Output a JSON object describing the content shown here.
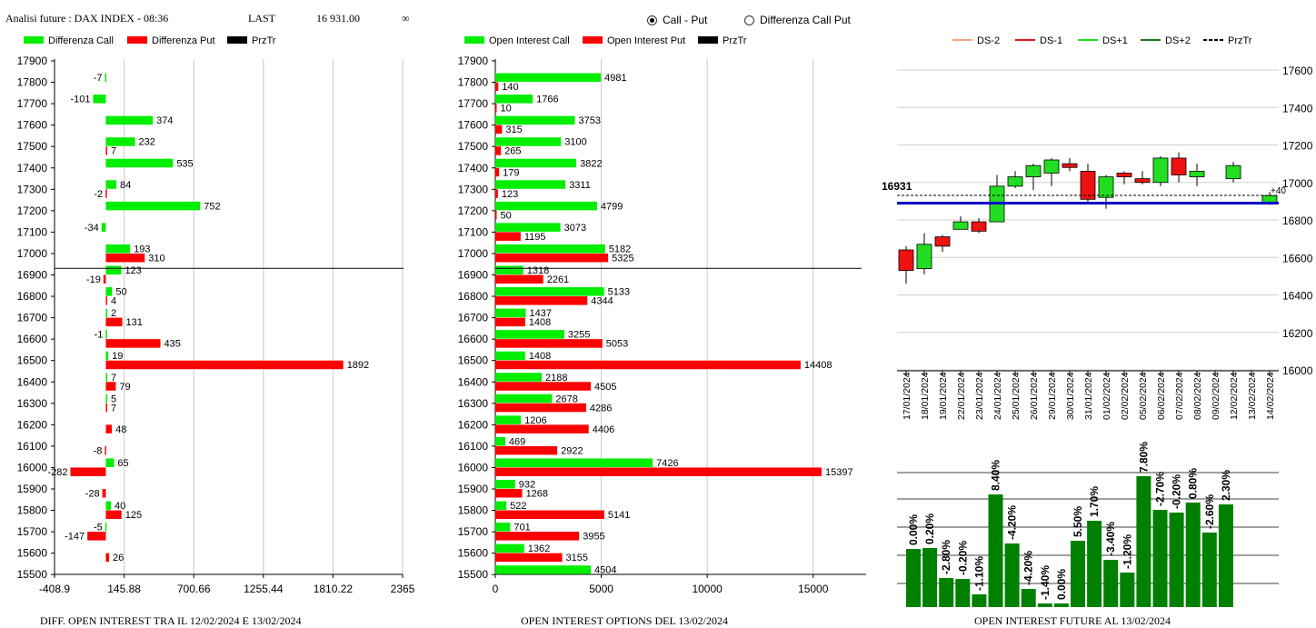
{
  "header": {
    "title": "Analisi future : DAX INDEX - 08:36",
    "last_label": "LAST",
    "last_value": "16 931.00",
    "infinity": "∞"
  },
  "mode": {
    "options": [
      "Call - Put",
      "Differenza Call Put"
    ],
    "selected": "Call - Put"
  },
  "colors": {
    "green": "#00ee00",
    "red": "#ff0000",
    "dark_green": "#008000",
    "blue": "#0000cc",
    "black": "#000000"
  },
  "chart_data": [
    {
      "type": "bar",
      "orientation": "horizontal",
      "title": "DIFF. OPEN INTEREST TRA IL 12/02/2024 E 13/02/2024",
      "legend": [
        "Differenza Call",
        "Differenza Put",
        "PrzTr"
      ],
      "categories": [
        17900,
        17800,
        17700,
        17600,
        17500,
        17400,
        17300,
        17200,
        17100,
        17000,
        16900,
        16800,
        16700,
        16600,
        16500,
        16400,
        16300,
        16200,
        16100,
        16000,
        15900,
        15800,
        15700,
        15600,
        15500
      ],
      "series": [
        {
          "name": "Differenza Call",
          "values": [
            null,
            -7,
            -101,
            374,
            232,
            535,
            84,
            752,
            -34,
            193,
            123,
            50,
            2,
            -1,
            19,
            7,
            5,
            null,
            null,
            65,
            null,
            40,
            -5,
            null,
            null
          ]
        },
        {
          "name": "Differenza Put",
          "values": [
            null,
            null,
            null,
            null,
            7,
            null,
            -2,
            null,
            null,
            310,
            -19,
            4,
            131,
            435,
            1892,
            79,
            7,
            48,
            -8,
            -282,
            -28,
            125,
            -147,
            26,
            null
          ]
        }
      ],
      "x_ticks": [
        "-408.9",
        "145.88",
        "700.66",
        "1255.44",
        "1810.22",
        "2365"
      ],
      "xlim": [
        -408.9,
        2365
      ],
      "price_line": 16931
    },
    {
      "type": "bar",
      "orientation": "horizontal",
      "title": "OPEN INTEREST OPTIONS DEL 13/02/2024",
      "legend": [
        "Open Interest Call",
        "Open Interest Put",
        "PrzTr"
      ],
      "categories": [
        17900,
        17800,
        17700,
        17600,
        17500,
        17400,
        17300,
        17200,
        17100,
        17000,
        16900,
        16800,
        16700,
        16600,
        16500,
        16400,
        16300,
        16200,
        16100,
        16000,
        15900,
        15800,
        15700,
        15600,
        15500
      ],
      "series": [
        {
          "name": "Open Interest Call",
          "values": [
            null,
            4981,
            1766,
            3753,
            3100,
            3822,
            3311,
            4799,
            3073,
            5182,
            1318,
            5133,
            1437,
            3255,
            1408,
            2188,
            2678,
            1206,
            469,
            7426,
            932,
            522,
            701,
            1362,
            4504
          ]
        },
        {
          "name": "Open Interest Put",
          "values": [
            null,
            140,
            10,
            315,
            265,
            179,
            123,
            50,
            1195,
            5325,
            2261,
            4344,
            1408,
            5053,
            14408,
            4505,
            4286,
            4406,
            2922,
            15397,
            1268,
            5141,
            3955,
            3155,
            null
          ]
        }
      ],
      "x_ticks": [
        "0",
        "5000",
        "10000",
        "15000"
      ],
      "xlim": [
        0,
        17500
      ],
      "price_line": 16931
    },
    {
      "type": "candlestick",
      "legend": [
        "DS-2",
        "DS-1",
        "DS+1",
        "DS+2",
        "PrzTr"
      ],
      "legend_colors": [
        "#f4a582",
        "#d7191c",
        "#1ae61a",
        "#1a7a1a",
        "#000000"
      ],
      "dates": [
        "17/01/2024",
        "18/01/2024",
        "19/01/2024",
        "22/01/2024",
        "23/01/2024",
        "24/01/2024",
        "25/01/2024",
        "26/01/2024",
        "29/01/2024",
        "30/01/2024",
        "31/01/2024",
        "01/02/2024",
        "02/02/2024",
        "05/02/2024",
        "06/02/2024",
        "07/02/2024",
        "08/02/2024",
        "09/02/2024",
        "12/02/2024",
        "13/02/2024",
        "14/02/2024"
      ],
      "ohlc": [
        [
          16640,
          16660,
          16460,
          16530
        ],
        [
          16540,
          16730,
          16510,
          16670
        ],
        [
          16710,
          16720,
          16630,
          16660
        ],
        [
          16750,
          16820,
          16750,
          16790
        ],
        [
          16790,
          16810,
          16730,
          16740
        ],
        [
          16790,
          17040,
          16790,
          16980
        ],
        [
          16980,
          17060,
          16970,
          17030
        ],
        [
          17030,
          17100,
          16960,
          17090
        ],
        [
          17050,
          17130,
          16980,
          17120
        ],
        [
          17100,
          17130,
          17060,
          17080
        ],
        [
          17060,
          17100,
          16890,
          16910
        ],
        [
          16920,
          17040,
          16860,
          17030
        ],
        [
          17050,
          17060,
          16990,
          17030
        ],
        [
          17020,
          17060,
          16990,
          17000
        ],
        [
          17000,
          17140,
          16980,
          17130
        ],
        [
          17130,
          17160,
          17000,
          17040
        ],
        [
          17030,
          17100,
          16980,
          17060
        ],
        null,
        [
          17020,
          17110,
          17000,
          17090
        ],
        null,
        [
          16890,
          16950,
          16880,
          16930
        ]
      ],
      "y_ticks": [
        "17600",
        "17400",
        "17200",
        "17000",
        "16800",
        "16600",
        "16400",
        "16200",
        "16000"
      ],
      "ylim": [
        16000,
        17650
      ],
      "price_label": "16931",
      "price_line": 16931,
      "support_line": 16890,
      "delta_label": "+40"
    },
    {
      "type": "bar",
      "title": "OPEN INTEREST FUTURE AL 13/02/2024",
      "labels": [
        "0.00%",
        "0.20%",
        "-2.80%",
        "-0.20%",
        "-1.10%",
        "8.40%",
        "-4.20%",
        "-4.20%",
        "-1.40%",
        "0.00%",
        "5.50%",
        "1.70%",
        "-3.40%",
        "-1.20%",
        "7.80%",
        "-2.70%",
        "-0.20%",
        "0.80%",
        "-2.60%",
        "2.30%"
      ],
      "level_percent": [
        64,
        65,
        32,
        31,
        14,
        124,
        70,
        20,
        4,
        4,
        73,
        95,
        52,
        38,
        144,
        107,
        104,
        115,
        82,
        113
      ]
    }
  ]
}
